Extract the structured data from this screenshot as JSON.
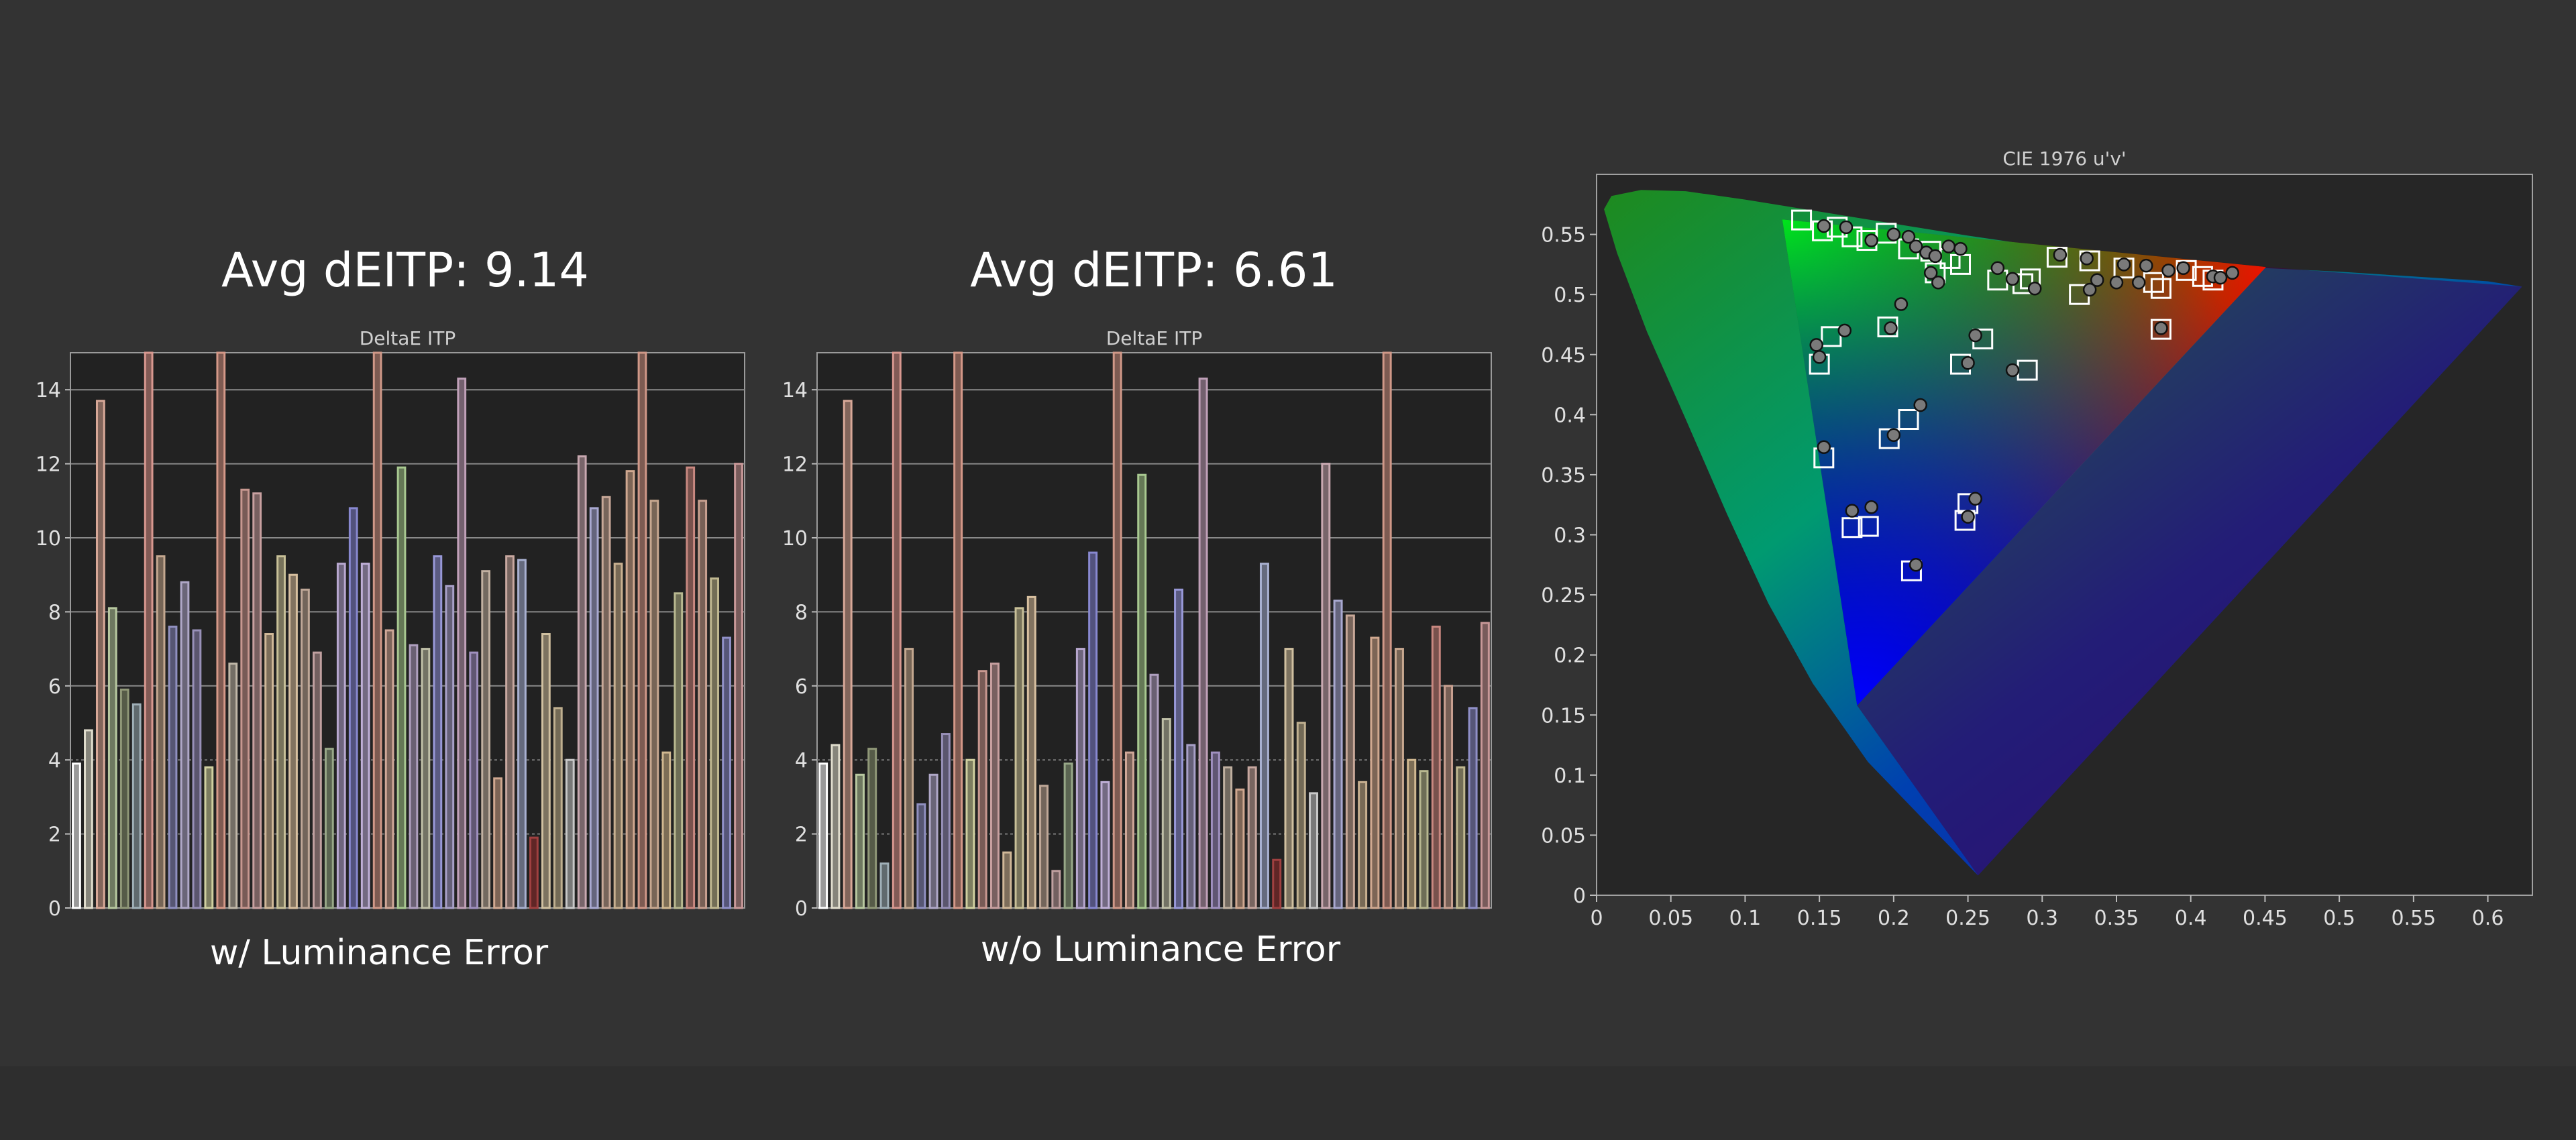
{
  "panels": [
    {
      "heading": "Avg dEITP: 9.14",
      "caption": "w/ Luminance Error"
    },
    {
      "heading": "Avg dEITP: 6.61",
      "caption": "w/o Luminance Error"
    }
  ],
  "chart_data": [
    {
      "type": "bar",
      "title": "DeltaE ITP",
      "xlabel": "",
      "ylabel": "",
      "ylim": [
        0,
        15
      ],
      "yticks": [
        0,
        2,
        4,
        6,
        8,
        10,
        12,
        14
      ],
      "grid": true,
      "values": [
        3.9,
        4.8,
        13.7,
        8.1,
        5.9,
        5.5,
        15,
        9.5,
        7.6,
        8.8,
        7.5,
        3.8,
        15,
        6.6,
        11.3,
        11.2,
        7.4,
        9.5,
        9.0,
        8.6,
        6.9,
        4.3,
        9.3,
        10.8,
        9.3,
        15,
        7.5,
        11.9,
        7.1,
        7.0,
        9.5,
        8.7,
        14.3,
        6.9,
        9.1,
        3.5,
        9.5,
        9.4,
        1.9,
        7.4,
        5.4,
        4.0,
        12.2,
        10.8,
        11.1,
        9.3,
        11.8,
        15,
        11.0,
        4.2,
        8.5,
        11.9,
        11.0,
        8.9,
        7.3,
        12.0
      ],
      "colors": [
        "#ffffff",
        "#e0ddcd",
        "#d8a898",
        "#b8c8a0",
        "#909878",
        "#a0b0b8",
        "#d89890",
        "#c4a890",
        "#9090c0",
        "#b0a8c8",
        "#9890b8",
        "#d0d0a0",
        "#d49888",
        "#c0b8a8",
        "#c89890",
        "#c8a0a0",
        "#d0b898",
        "#c8c098",
        "#d8c0a0",
        "#c0a898",
        "#c0a0a0",
        "#98a888",
        "#b8a8d0",
        "#8888d0",
        "#c0b0d8",
        "#d09888",
        "#d0a898",
        "#a8c890",
        "#b0a0c0",
        "#c0c0a8",
        "#9898d8",
        "#a8a0c8",
        "#c0a0b8",
        "#a090c0",
        "#c0b0a0",
        "#d0a890",
        "#c8a8a0",
        "#a8b0d0",
        "#a04040",
        "#d0c0a0",
        "#c0b090",
        "#c8c8c8",
        "#c8a8b0",
        "#a8a8d0",
        "#c8a898",
        "#c8b090",
        "#d0a890",
        "#d09888",
        "#c8a890",
        "#d0b890",
        "#b8b890",
        "#c88880",
        "#c8a090",
        "#c0b890",
        "#9090c8",
        "#c89898"
      ]
    },
    {
      "type": "bar",
      "title": "DeltaE ITP",
      "xlabel": "",
      "ylabel": "",
      "ylim": [
        0,
        15
      ],
      "yticks": [
        0,
        2,
        4,
        6,
        8,
        10,
        12,
        14
      ],
      "grid": true,
      "values": [
        3.9,
        4.4,
        13.7,
        3.6,
        4.3,
        1.2,
        15,
        7.0,
        2.8,
        3.6,
        4.7,
        15,
        4.0,
        6.4,
        6.6,
        1.5,
        8.1,
        8.4,
        3.3,
        1.0,
        3.9,
        7.0,
        9.6,
        3.4,
        15,
        4.2,
        11.7,
        6.3,
        5.1,
        8.6,
        4.4,
        14.3,
        4.2,
        3.8,
        3.2,
        3.8,
        9.3,
        1.3,
        7.0,
        5.0,
        3.1,
        12.0,
        8.3,
        7.9,
        3.4,
        7.3,
        15,
        7.0,
        4.0,
        3.7,
        7.6,
        6.0,
        3.8,
        5.4,
        7.7
      ],
      "colors": [
        "#ffffff",
        "#e0ddcd",
        "#d8a898",
        "#b8c8a0",
        "#909878",
        "#a0b0b8",
        "#d89890",
        "#c4a890",
        "#9090c0",
        "#b0a8c8",
        "#9890b8",
        "#d49888",
        "#d0d0a0",
        "#c89890",
        "#c8a0a0",
        "#d0b898",
        "#c8c098",
        "#d8c0a0",
        "#c0a898",
        "#c0a0a0",
        "#98a888",
        "#b8a8d0",
        "#8888d0",
        "#c0b0d8",
        "#d09888",
        "#d0a898",
        "#a8c890",
        "#b0a0c0",
        "#c0c0a8",
        "#9898d8",
        "#a8a0c8",
        "#c0a0b8",
        "#a090c0",
        "#c0b0a0",
        "#d0a890",
        "#c8a8a0",
        "#a8b0d0",
        "#a04040",
        "#d0c0a0",
        "#c0b090",
        "#c8c8c8",
        "#c8a8b0",
        "#a8a8d0",
        "#c8a898",
        "#c8b090",
        "#d0a890",
        "#d09888",
        "#c8a890",
        "#d0b890",
        "#b8b890",
        "#c88880",
        "#c8a090",
        "#c0b890",
        "#9090c8",
        "#c89898"
      ]
    },
    {
      "type": "scatter",
      "title": "CIE 1976 u'v'",
      "xlabel": "",
      "ylabel": "",
      "xlim": [
        0,
        0.63
      ],
      "ylim": [
        0,
        0.6
      ],
      "xticks": [
        0,
        0.05,
        0.1,
        0.15,
        0.2,
        0.25,
        0.3,
        0.35,
        0.4,
        0.45,
        0.5,
        0.55,
        0.6
      ],
      "yticks": [
        0,
        0.05,
        0.1,
        0.15,
        0.2,
        0.25,
        0.3,
        0.35,
        0.4,
        0.45,
        0.5,
        0.55
      ],
      "gamut_triangle": [
        [
          0.4507,
          0.5229
        ],
        [
          0.125,
          0.5625
        ],
        [
          0.1754,
          0.1579
        ]
      ],
      "series": [
        {
          "marker": "square",
          "points": [
            [
              0.138,
              0.562
            ],
            [
              0.152,
              0.553
            ],
            [
              0.162,
              0.556
            ],
            [
              0.172,
              0.548
            ],
            [
              0.182,
              0.545
            ],
            [
              0.195,
              0.551
            ],
            [
              0.21,
              0.538
            ],
            [
              0.225,
              0.536
            ],
            [
              0.238,
              0.53
            ],
            [
              0.228,
              0.518
            ],
            [
              0.245,
              0.525
            ],
            [
              0.27,
              0.512
            ],
            [
              0.287,
              0.509
            ],
            [
              0.292,
              0.513
            ],
            [
              0.31,
              0.531
            ],
            [
              0.325,
              0.5
            ],
            [
              0.332,
              0.528
            ],
            [
              0.355,
              0.522
            ],
            [
              0.375,
              0.51
            ],
            [
              0.38,
              0.505
            ],
            [
              0.397,
              0.52
            ],
            [
              0.408,
              0.515
            ],
            [
              0.415,
              0.512
            ],
            [
              0.15,
              0.442
            ],
            [
              0.158,
              0.465
            ],
            [
              0.196,
              0.473
            ],
            [
              0.26,
              0.463
            ],
            [
              0.245,
              0.442
            ],
            [
              0.29,
              0.437
            ],
            [
              0.38,
              0.471
            ],
            [
              0.153,
              0.364
            ],
            [
              0.197,
              0.38
            ],
            [
              0.21,
              0.396
            ],
            [
              0.172,
              0.306
            ],
            [
              0.183,
              0.307
            ],
            [
              0.25,
              0.326
            ],
            [
              0.248,
              0.312
            ],
            [
              0.212,
              0.27
            ]
          ]
        },
        {
          "marker": "circle",
          "points": [
            [
              0.153,
              0.557
            ],
            [
              0.168,
              0.556
            ],
            [
              0.185,
              0.545
            ],
            [
              0.2,
              0.55
            ],
            [
              0.21,
              0.548
            ],
            [
              0.215,
              0.54
            ],
            [
              0.222,
              0.535
            ],
            [
              0.228,
              0.532
            ],
            [
              0.237,
              0.54
            ],
            [
              0.245,
              0.538
            ],
            [
              0.225,
              0.518
            ],
            [
              0.23,
              0.51
            ],
            [
              0.27,
              0.522
            ],
            [
              0.28,
              0.513
            ],
            [
              0.295,
              0.505
            ],
            [
              0.312,
              0.533
            ],
            [
              0.33,
              0.53
            ],
            [
              0.337,
              0.512
            ],
            [
              0.355,
              0.525
            ],
            [
              0.365,
              0.51
            ],
            [
              0.37,
              0.524
            ],
            [
              0.385,
              0.52
            ],
            [
              0.395,
              0.522
            ],
            [
              0.415,
              0.515
            ],
            [
              0.42,
              0.514
            ],
            [
              0.428,
              0.518
            ],
            [
              0.332,
              0.504
            ],
            [
              0.35,
              0.51
            ],
            [
              0.205,
              0.492
            ],
            [
              0.148,
              0.458
            ],
            [
              0.15,
              0.448
            ],
            [
              0.167,
              0.47
            ],
            [
              0.198,
              0.472
            ],
            [
              0.255,
              0.466
            ],
            [
              0.25,
              0.443
            ],
            [
              0.28,
              0.437
            ],
            [
              0.38,
              0.472
            ],
            [
              0.153,
              0.373
            ],
            [
              0.2,
              0.383
            ],
            [
              0.218,
              0.408
            ],
            [
              0.172,
              0.32
            ],
            [
              0.185,
              0.323
            ],
            [
              0.255,
              0.33
            ],
            [
              0.25,
              0.315
            ],
            [
              0.215,
              0.275
            ]
          ]
        }
      ]
    }
  ]
}
